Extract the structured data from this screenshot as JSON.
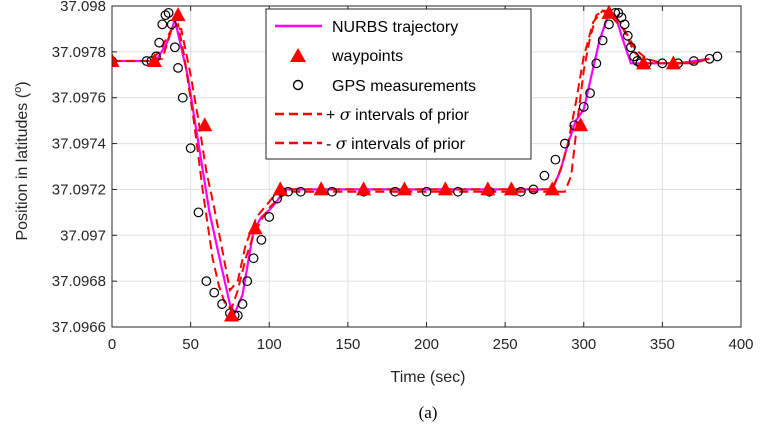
{
  "chart_data": {
    "type": "line",
    "title": "",
    "xlabel": "Time (sec)",
    "ylabel_prefix": "Position in latitudes (",
    "ylabel_sup": "o",
    "ylabel_suffix": ")",
    "caption": "(a)",
    "xlim": [
      0,
      400
    ],
    "ylim": [
      37.0966,
      37.098
    ],
    "xticks": [
      0,
      50,
      100,
      150,
      200,
      250,
      300,
      350,
      400
    ],
    "yticks": [
      37.0966,
      37.0968,
      37.097,
      37.0972,
      37.0974,
      37.0976,
      37.0978,
      37.098
    ],
    "ytick_labels": [
      "37.0966",
      "37.0968",
      "37.097",
      "37.0972",
      "37.0974",
      "37.0976",
      "37.0978",
      "37.098"
    ],
    "grid": true,
    "legend_position": "top-center",
    "legend": [
      {
        "key": "nurbs",
        "label": "NURBS trajectory"
      },
      {
        "key": "waypoints",
        "label": "waypoints"
      },
      {
        "key": "gps",
        "label": "GPS measurements"
      },
      {
        "key": "plus",
        "label_prefix": "+ ",
        "label_sigma": "σ",
        "label_suffix": " intervals of prior"
      },
      {
        "key": "minus",
        "label_prefix": "- ",
        "label_sigma": "σ",
        "label_suffix": " intervals of prior"
      }
    ],
    "colors": {
      "nurbs": "#ff00ff",
      "waypoints": "#ff0000",
      "gps": "#000000",
      "prior": "#ff0000"
    },
    "series": {
      "nurbs": {
        "x": [
          0,
          22,
          28,
          35,
          40,
          48,
          55,
          62,
          70,
          75,
          78,
          83,
          90,
          95,
          100,
          105,
          110,
          130,
          160,
          200,
          240,
          270,
          280,
          285,
          290,
          295,
          300,
          305,
          310,
          316,
          320,
          325,
          330,
          340,
          360,
          380
        ],
        "y": [
          37.09776,
          37.09776,
          37.09776,
          37.09784,
          37.09794,
          37.0977,
          37.0974,
          37.0971,
          37.09685,
          37.0967,
          37.09666,
          37.09674,
          37.09702,
          37.09708,
          37.09711,
          37.09715,
          37.0972,
          37.0972,
          37.0972,
          37.0972,
          37.0972,
          37.0972,
          37.0972,
          37.09728,
          37.0974,
          37.0975,
          37.09755,
          37.0977,
          37.09785,
          37.09797,
          37.09796,
          37.09785,
          37.09775,
          37.09775,
          37.09775,
          37.09777
        ]
      },
      "waypoints": {
        "x": [
          0,
          27,
          42,
          59,
          76,
          91,
          107,
          133,
          160,
          186,
          212,
          239,
          254,
          280,
          298,
          316,
          338,
          357
        ],
        "y": [
          37.09776,
          37.09776,
          37.09796,
          37.09748,
          37.09665,
          37.09703,
          37.0972,
          37.0972,
          37.0972,
          37.0972,
          37.0972,
          37.0972,
          37.0972,
          37.0972,
          37.09748,
          37.09797,
          37.09775,
          37.09775
        ]
      },
      "gps": {
        "x": [
          0,
          22,
          25,
          28,
          30,
          32,
          34,
          36,
          38,
          40,
          42,
          45,
          50,
          55,
          60,
          65,
          70,
          75,
          78,
          80,
          83,
          86,
          90,
          95,
          100,
          105,
          108,
          112,
          120,
          140,
          160,
          180,
          200,
          220,
          240,
          260,
          268,
          275,
          282,
          288,
          294,
          300,
          304,
          308,
          312,
          316,
          320,
          322,
          324,
          326,
          328,
          330,
          332,
          334,
          336,
          340,
          350,
          360,
          370,
          380,
          385
        ],
        "y": [
          37.09776,
          37.09776,
          37.09776,
          37.09778,
          37.09784,
          37.09792,
          37.09796,
          37.09797,
          37.09792,
          37.09782,
          37.09773,
          37.0976,
          37.09738,
          37.0971,
          37.0968,
          37.09675,
          37.0967,
          37.09666,
          37.09665,
          37.09665,
          37.0967,
          37.0968,
          37.0969,
          37.09698,
          37.09708,
          37.09716,
          37.09719,
          37.09719,
          37.09719,
          37.09719,
          37.09719,
          37.09719,
          37.09719,
          37.09719,
          37.09719,
          37.09719,
          37.0972,
          37.09726,
          37.09733,
          37.0974,
          37.09748,
          37.09756,
          37.09762,
          37.09775,
          37.09785,
          37.09792,
          37.09797,
          37.09797,
          37.09795,
          37.09792,
          37.09787,
          37.09782,
          37.09778,
          37.09776,
          37.09775,
          37.09775,
          37.09775,
          37.09775,
          37.09776,
          37.09777,
          37.09778
        ]
      },
      "plus_sigma": {
        "x": [
          0,
          24,
          30,
          38,
          44,
          50,
          55,
          60,
          65,
          70,
          75,
          80,
          85,
          92,
          98,
          104,
          110,
          130,
          160,
          200,
          240,
          268,
          280,
          286,
          290,
          295,
          300,
          306,
          312,
          318,
          325,
          332,
          340,
          350,
          370,
          380
        ],
        "y": [
          37.09776,
          37.09776,
          37.0978,
          37.0979,
          37.0979,
          37.0977,
          37.0975,
          37.09728,
          37.09712,
          37.09694,
          37.09676,
          37.0968,
          37.09696,
          37.09708,
          37.09713,
          37.09718,
          37.0972,
          37.0972,
          37.0972,
          37.0972,
          37.0972,
          37.0972,
          37.0972,
          37.0973,
          37.0974,
          37.09758,
          37.09778,
          37.09793,
          37.09798,
          37.09795,
          37.0979,
          37.0978,
          37.09775,
          37.09775,
          37.09775,
          37.09777
        ]
      },
      "minus_sigma": {
        "x": [
          0,
          26,
          32,
          38,
          42,
          46,
          52,
          58,
          64,
          68,
          72,
          76,
          80,
          85,
          90,
          96,
          100,
          106,
          112,
          130,
          160,
          200,
          240,
          270,
          288,
          292,
          296,
          300,
          304,
          308,
          313,
          318,
          323,
          328,
          333,
          340,
          350,
          370,
          380
        ],
        "y": [
          37.09776,
          37.09776,
          37.09777,
          37.0979,
          37.09792,
          37.09778,
          37.0975,
          37.09718,
          37.0969,
          37.09678,
          37.0967,
          37.09668,
          37.09676,
          37.0969,
          37.097,
          37.09708,
          37.09712,
          37.09716,
          37.09719,
          37.09719,
          37.09719,
          37.09719,
          37.09719,
          37.09719,
          37.09719,
          37.09726,
          37.0975,
          37.09772,
          37.09786,
          37.09796,
          37.09798,
          37.09797,
          37.09793,
          37.09787,
          37.09781,
          37.09777,
          37.09775,
          37.09775,
          37.09777
        ]
      }
    }
  }
}
